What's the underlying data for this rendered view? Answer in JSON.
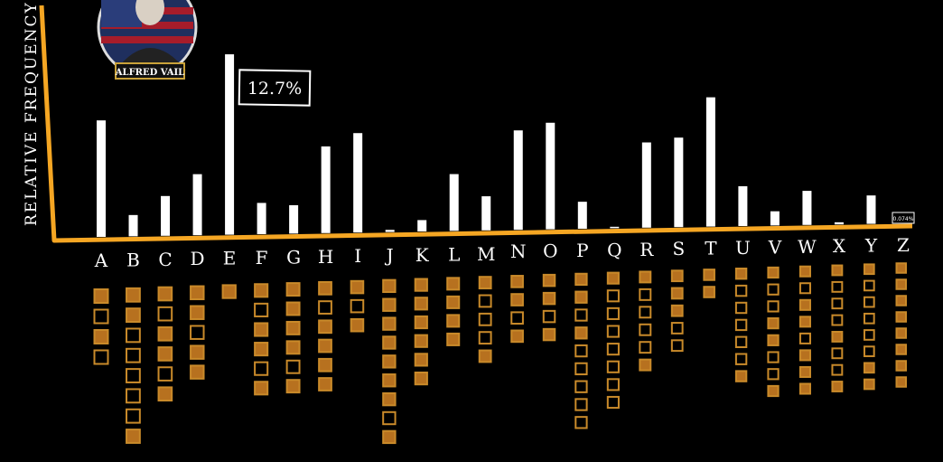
{
  "portrait": {
    "caption": "ALFRED VAIL"
  },
  "callout": {
    "value": "12.7%"
  },
  "small_callout": {
    "value": "0.074%"
  },
  "colors": {
    "axis": "#f5a623",
    "bar": "#ffffff",
    "box": "#c98a2a",
    "box_fill": "#b7711f",
    "background": "#000000"
  },
  "chart_data": {
    "type": "bar",
    "title": "",
    "xlabel": "",
    "ylabel": "RELATIVE FREQUENCY",
    "ylim": [
      0,
      13.5
    ],
    "grid": false,
    "categories": [
      "A",
      "B",
      "C",
      "D",
      "E",
      "F",
      "G",
      "H",
      "I",
      "J",
      "K",
      "L",
      "M",
      "N",
      "O",
      "P",
      "Q",
      "R",
      "S",
      "T",
      "U",
      "V",
      "W",
      "X",
      "Y",
      "Z"
    ],
    "values": [
      8.2,
      1.5,
      2.8,
      4.3,
      12.7,
      2.2,
      2.0,
      6.1,
      7.0,
      0.15,
      0.8,
      4.0,
      2.4,
      7.0,
      7.5,
      1.9,
      0.1,
      6.0,
      6.3,
      9.1,
      2.8,
      1.0,
      2.4,
      0.15,
      2.0,
      0.074
    ],
    "morse": [
      [
        1,
        0,
        1,
        0
      ],
      [
        1,
        1,
        0,
        0,
        0,
        0,
        0,
        1
      ],
      [
        1,
        0,
        1,
        1,
        0,
        1
      ],
      [
        1,
        1,
        0,
        1,
        1
      ],
      [
        1
      ],
      [
        1,
        0,
        1,
        1,
        0,
        1
      ],
      [
        1,
        1,
        1,
        1,
        0,
        1
      ],
      [
        1,
        0,
        1,
        1,
        1,
        1
      ],
      [
        1,
        0,
        1
      ],
      [
        1,
        1,
        1,
        1,
        1,
        1,
        1,
        0,
        1
      ],
      [
        1,
        1,
        1,
        1,
        1,
        1
      ],
      [
        1,
        1,
        1,
        1
      ],
      [
        1,
        0,
        0,
        0,
        1
      ],
      [
        1,
        1,
        0,
        1
      ],
      [
        1,
        1,
        0,
        1
      ],
      [
        1,
        1,
        0,
        1,
        0,
        0,
        0,
        0,
        0
      ],
      [
        1,
        0,
        0,
        0,
        0,
        0,
        0,
        0
      ],
      [
        1,
        0,
        0,
        0,
        0,
        1
      ],
      [
        1,
        1,
        1,
        0,
        0
      ],
      [
        1,
        1
      ],
      [
        1,
        0,
        0,
        0,
        0,
        0,
        1
      ],
      [
        1,
        0,
        0,
        1,
        1,
        0,
        0,
        1
      ],
      [
        1,
        0,
        1,
        1,
        0,
        1,
        1,
        1
      ],
      [
        1,
        0,
        0,
        0,
        1,
        0,
        0,
        1
      ],
      [
        1,
        0,
        0,
        0,
        0,
        0,
        1,
        1
      ],
      [
        1,
        1,
        1,
        1,
        1,
        1,
        1,
        1
      ]
    ]
  }
}
